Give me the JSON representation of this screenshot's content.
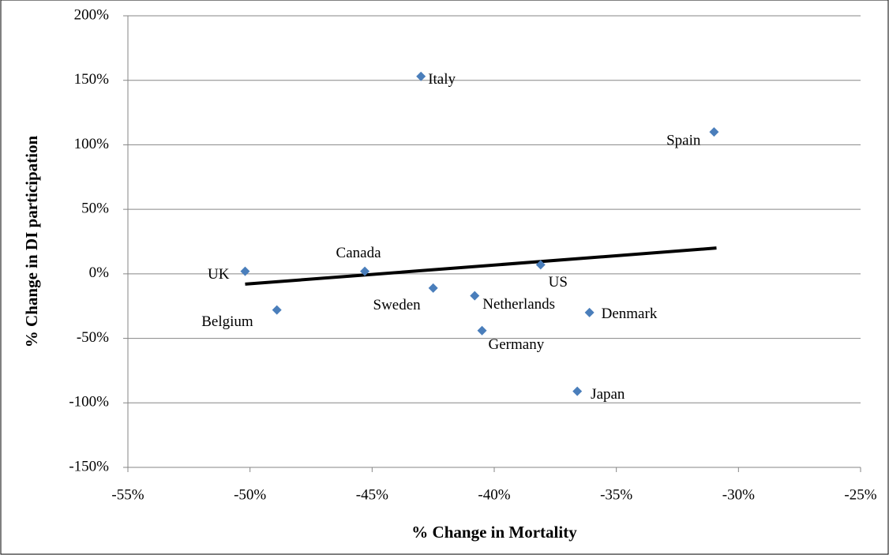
{
  "chart_data": {
    "type": "scatter",
    "x_label": "% Change in Mortality",
    "y_label": "% Change in DI participation",
    "point_labels": [
      "UK",
      "Belgium",
      "Canada",
      "Italy",
      "Sweden",
      "Netherlands",
      "Germany",
      "US",
      "Denmark",
      "Japan",
      "Spain"
    ],
    "x": [
      -50.2,
      -48.9,
      -45.3,
      -43.0,
      -42.5,
      -40.8,
      -40.5,
      -38.1,
      -36.1,
      -36.6,
      -31.0
    ],
    "values": [
      2,
      -28,
      2,
      153,
      -11,
      -17,
      -44,
      7,
      -30,
      -91,
      110
    ],
    "color": "#4a7ebb",
    "trendline": {
      "x": [
        -50.2,
        -30.9
      ],
      "y": [
        -8,
        20
      ],
      "color": "#000000"
    },
    "xlim": [
      -55,
      -25
    ],
    "xticks": [
      {
        "value": -55,
        "label": "-55%"
      },
      {
        "value": -50,
        "label": "-50%"
      },
      {
        "value": -45,
        "label": "-45%"
      },
      {
        "value": -40,
        "label": "-40%"
      },
      {
        "value": -35,
        "label": "-35%"
      },
      {
        "value": -30,
        "label": "-30%"
      },
      {
        "value": -25,
        "label": "-25%"
      }
    ],
    "ylim": [
      -150,
      200
    ],
    "yticks": [
      {
        "value": -150,
        "label": "-150%"
      },
      {
        "value": -100,
        "label": "-100%"
      },
      {
        "value": -50,
        "label": "-50%"
      },
      {
        "value": 0,
        "label": "0%"
      },
      {
        "value": 50,
        "label": "50%"
      },
      {
        "value": 100,
        "label": "100%"
      },
      {
        "value": 150,
        "label": "150%"
      },
      {
        "value": 200,
        "label": "200%"
      }
    ],
    "grid": true
  }
}
